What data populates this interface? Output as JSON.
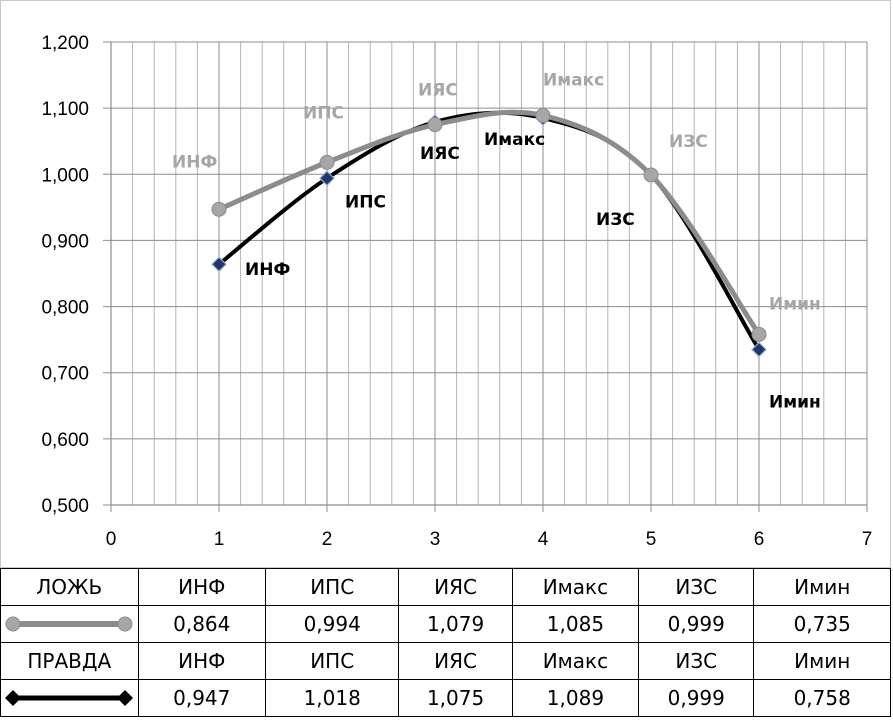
{
  "chart_data": {
    "type": "scatter",
    "xlim": [
      0,
      7
    ],
    "ylim": [
      0.5,
      1.2
    ],
    "x_ticks": [
      "0",
      "1",
      "2",
      "3",
      "4",
      "5",
      "6",
      "7"
    ],
    "y_ticks": [
      "0,500",
      "0,600",
      "0,700",
      "0,800",
      "0,900",
      "1,000",
      "1,100",
      "1,200"
    ],
    "grid": true,
    "smoothed": true,
    "series": [
      {
        "name": "ЛОЖЬ",
        "color": "#000000",
        "marker": "diamond",
        "marker_color": "#1f3864",
        "label_color": "#000000",
        "points": [
          {
            "x": 1,
            "y": 0.864,
            "label": "ИНФ"
          },
          {
            "x": 2,
            "y": 0.994,
            "label": "ИПС"
          },
          {
            "x": 3,
            "y": 1.079,
            "label": "ИЯС"
          },
          {
            "x": 4,
            "y": 1.085,
            "label": "Имакс"
          },
          {
            "x": 5,
            "y": 0.999,
            "label": "ИЗС"
          },
          {
            "x": 6,
            "y": 0.735,
            "label": "Имин"
          }
        ]
      },
      {
        "name": "ПРАВДА",
        "color": "#8c8c8c",
        "marker": "circle",
        "marker_color": "#a6a6a6",
        "label_color": "#a6a6a6",
        "points": [
          {
            "x": 1,
            "y": 0.947,
            "label": "ИНФ"
          },
          {
            "x": 2,
            "y": 1.018,
            "label": "ИПС"
          },
          {
            "x": 3,
            "y": 1.075,
            "label": "ИЯС"
          },
          {
            "x": 4,
            "y": 1.089,
            "label": "Имакс"
          },
          {
            "x": 5,
            "y": 0.999,
            "label": "ИЗС"
          },
          {
            "x": 6,
            "y": 0.758,
            "label": "Имин"
          }
        ]
      }
    ]
  },
  "table": {
    "rows": [
      {
        "head": "ЛОЖЬ",
        "labels": [
          "ИНФ",
          "ИПС",
          "ИЯС",
          "Имакс",
          "ИЗС",
          "Имин"
        ],
        "values": [
          "0,864",
          "0,994",
          "1,079",
          "1,085",
          "0,999",
          "0,735"
        ]
      },
      {
        "head": "ПРАВДА",
        "labels": [
          "ИНФ",
          "ИПС",
          "ИЯС",
          "Имакс",
          "ИЗС",
          "Имин"
        ],
        "values": [
          "0,947",
          "1,018",
          "1,075",
          "1,089",
          "0,999",
          "0,758"
        ]
      }
    ]
  }
}
